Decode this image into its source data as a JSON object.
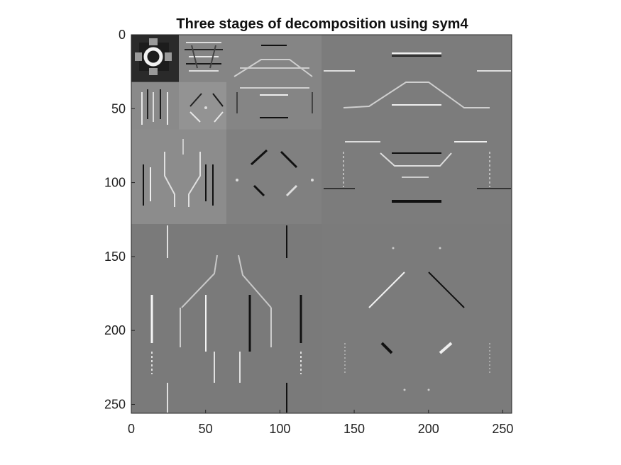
{
  "figure": {
    "title": "Three stages of decomposition using sym4",
    "xaxis": {
      "ticks": [
        0,
        50,
        100,
        150,
        200,
        250
      ],
      "range": [
        0,
        256
      ]
    },
    "yaxis": {
      "ticks": [
        0,
        50,
        100,
        150,
        200,
        250
      ],
      "range": [
        0,
        256
      ],
      "direction": "top-to-bottom"
    },
    "image_size": 256,
    "colormap": "gray",
    "grid": false,
    "subband_levels": [
      {
        "name": "approximation",
        "level": 3,
        "x": [
          0,
          32
        ],
        "y": [
          0,
          32
        ],
        "background": "#2a2a2a"
      },
      {
        "name": "detail-horizontal",
        "level": 3,
        "x": [
          32,
          64
        ],
        "y": [
          0,
          32
        ],
        "background": "#858585"
      },
      {
        "name": "detail-vertical",
        "level": 3,
        "x": [
          0,
          32
        ],
        "y": [
          32,
          64
        ],
        "background": "#8a8a8a"
      },
      {
        "name": "detail-diagonal",
        "level": 3,
        "x": [
          32,
          64
        ],
        "y": [
          32,
          64
        ],
        "background": "#939393"
      },
      {
        "name": "detail-horizontal",
        "level": 2,
        "x": [
          64,
          128
        ],
        "y": [
          0,
          64
        ],
        "background": "#858585"
      },
      {
        "name": "detail-vertical",
        "level": 2,
        "x": [
          0,
          64
        ],
        "y": [
          64,
          128
        ],
        "background": "#8c8c8c"
      },
      {
        "name": "detail-diagonal",
        "level": 2,
        "x": [
          64,
          128
        ],
        "y": [
          64,
          128
        ],
        "background": "#808080"
      },
      {
        "name": "detail-horizontal",
        "level": 1,
        "x": [
          128,
          256
        ],
        "y": [
          0,
          128
        ],
        "background": "#7c7c7c"
      },
      {
        "name": "detail-vertical",
        "level": 1,
        "x": [
          0,
          128
        ],
        "y": [
          128,
          256
        ],
        "background": "#7a7a7a"
      },
      {
        "name": "detail-diagonal",
        "level": 1,
        "x": [
          128,
          256
        ],
        "y": [
          128,
          256
        ],
        "background": "#7b7b7b"
      }
    ]
  }
}
